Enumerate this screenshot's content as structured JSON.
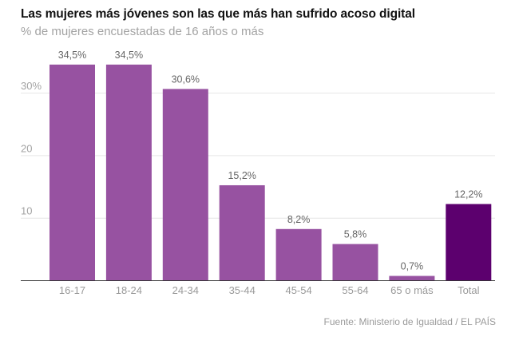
{
  "chart_data": {
    "type": "bar",
    "title": "Las mujeres más jóvenes son las que más han sufrido acoso digital",
    "subtitle": "% de mujeres encuestadas de 16 años o más",
    "xlabel": "",
    "ylabel": "",
    "categories": [
      "16-17",
      "18-24",
      "24-34",
      "35-44",
      "45-54",
      "55-64",
      "65 o más",
      "Total"
    ],
    "values": [
      34.5,
      34.5,
      30.6,
      15.2,
      8.2,
      5.8,
      0.7,
      12.2
    ],
    "value_labels": [
      "34,5%",
      "34,5%",
      "30,6%",
      "15,2%",
      "8,2%",
      "5,8%",
      "0,7%",
      "12,2%"
    ],
    "ylim": [
      0,
      35
    ],
    "yticks": [
      10,
      20,
      30
    ],
    "ytick_labels": [
      "10",
      "20",
      "30%"
    ],
    "grid": true,
    "legend": "none",
    "colors": {
      "bar": "#9752a1",
      "highlight": "#5c006e",
      "highlight_category": "Total"
    },
    "source": "Fuente: Ministerio de Igualdad / EL PAÍS"
  }
}
